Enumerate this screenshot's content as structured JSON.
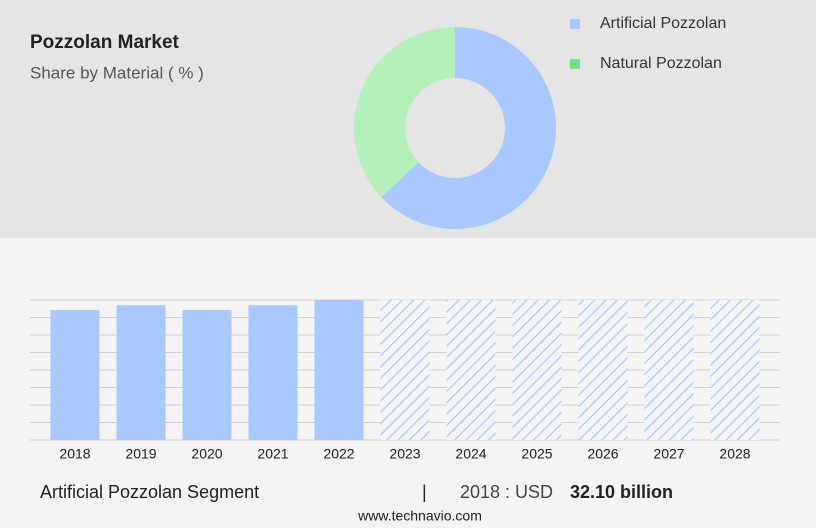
{
  "chart_data": [
    {
      "type": "pie",
      "title": "Pozzolan Market",
      "subtitle": "Share by Material ( % )",
      "categories": [
        "Artificial Pozzolan",
        "Natural Pozzolan"
      ],
      "values": [
        63,
        37
      ],
      "colors": [
        "#a8c8ff",
        "#b5efb9"
      ],
      "legend_colors": [
        "#a8c8ff",
        "#6ee28a"
      ],
      "donut": true,
      "legend": "right"
    },
    {
      "type": "bar",
      "categories": [
        "2018",
        "2019",
        "2020",
        "2021",
        "2022",
        "2023",
        "2024",
        "2025",
        "2026",
        "2027",
        "2028"
      ],
      "values": [
        32.1,
        33.3,
        32.1,
        33.3,
        34.6,
        null,
        null,
        null,
        null,
        null,
        null
      ],
      "color": "#a8c8ff",
      "ylim": [
        0,
        34.6
      ],
      "grid": true
    }
  ],
  "footer": {
    "segment": "Artificial Pozzolan Segment",
    "separator": "|",
    "year_label": "2018 : USD",
    "value": "32.10 billion",
    "source": "www.technavio.com"
  }
}
